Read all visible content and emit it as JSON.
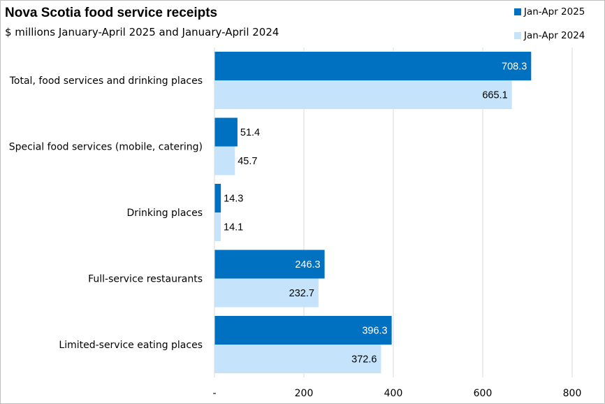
{
  "chart_data": {
    "type": "bar",
    "orientation": "horizontal",
    "title": "Nova Scotia food service receipts",
    "subtitle": "$ millions January-April 2025 and January-April 2024",
    "categories": [
      "Total, food services and drinking places",
      "Special food services (mobile, catering)",
      "Drinking places",
      "Full-service restaurants",
      "Limited-service eating places"
    ],
    "series": [
      {
        "name": "Jan-Apr 2025",
        "color": "#0070c0",
        "values": [
          708.3,
          51.4,
          14.3,
          246.3,
          396.3
        ],
        "labels": [
          "708.3",
          "51.4",
          "14.3",
          "246.3",
          "396.3"
        ]
      },
      {
        "name": "Jan-Apr 2024",
        "color": "#c5e3fa",
        "values": [
          665.1,
          45.7,
          14.1,
          232.7,
          372.6
        ],
        "labels": [
          "665.1",
          "45.7",
          "14.1",
          "232.7",
          "372.6"
        ]
      }
    ],
    "xlim": [
      0,
      800
    ],
    "xticks": [
      0,
      200,
      400,
      600,
      800
    ],
    "xtick_labels": [
      "-",
      "200",
      "400",
      "600",
      "800"
    ],
    "grid": true,
    "legend_position": "top-right"
  }
}
